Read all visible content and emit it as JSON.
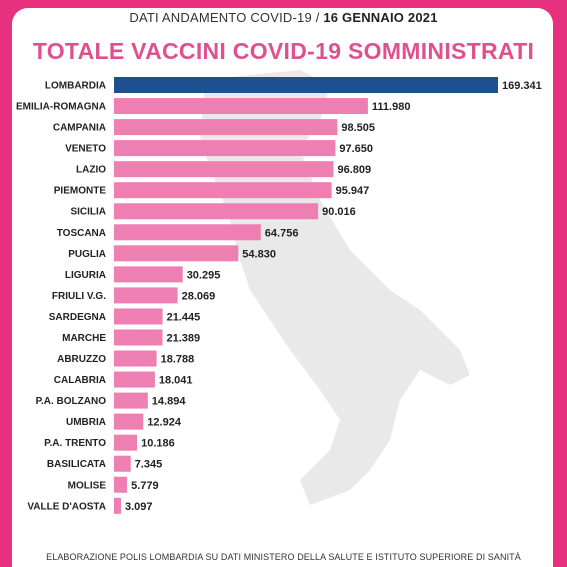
{
  "header": {
    "prefix": "DATI ANDAMENTO COVID-19 /",
    "date": "16 GENNAIO 2021"
  },
  "footer": {
    "text": "ELABORAZIONE POLIS LOMBARDIA SU DATI MINISTERO DELLA SALUTE E ISTITUTO SUPERIORE DI SANITÀ"
  },
  "colors": {
    "frame": "#e8317e",
    "highlight_bar": "#1d4f91",
    "bar": "#ee7fb3",
    "title": "#e0508f"
  },
  "chart_data": {
    "type": "bar",
    "orientation": "horizontal",
    "title": "TOTALE VACCINI COVID-19 SOMMINISTRATI",
    "highlight": "LOMBARDIA",
    "categories": [
      "LOMBARDIA",
      "EMILIA-ROMAGNA",
      "CAMPANIA",
      "VENETO",
      "LAZIO",
      "PIEMONTE",
      "SICILIA",
      "TOSCANA",
      "PUGLIA",
      "LIGURIA",
      "FRIULI V.G.",
      "SARDEGNA",
      "MARCHE",
      "ABRUZZO",
      "CALABRIA",
      "P.A. BOLZANO",
      "UMBRIA",
      "P.A. TRENTO",
      "BASILICATA",
      "MOLISE",
      "VALLE D'AOSTA"
    ],
    "values": [
      169341,
      111980,
      98505,
      97650,
      96809,
      95947,
      90016,
      64756,
      54830,
      30295,
      28069,
      21445,
      21389,
      18788,
      18041,
      14894,
      12924,
      10186,
      7345,
      5779,
      3097
    ],
    "value_labels": [
      "169.341",
      "111.980",
      "98.505",
      "97.650",
      "96.809",
      "95.947",
      "90.016",
      "64.756",
      "54.830",
      "30.295",
      "28.069",
      "21.445",
      "21.389",
      "18.788",
      "18.041",
      "14.894",
      "12.924",
      "10.186",
      "7.345",
      "5.779",
      "3.097"
    ]
  }
}
